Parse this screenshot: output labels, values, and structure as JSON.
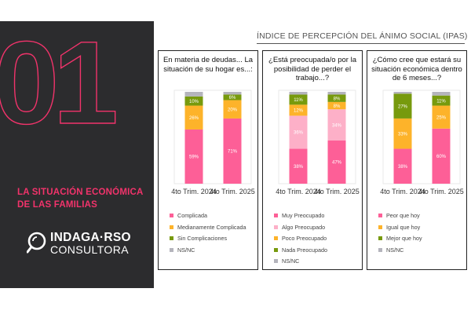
{
  "section": {
    "number": "01",
    "title": "LA SITUACIÓN ECONÓMICA DE LAS FAMILIAS"
  },
  "logo": {
    "name": "INDAGA·RSO",
    "subtitle": "CONSULTORA"
  },
  "header": {
    "title": "ÍNDICE DE PERCEPCIÓN DEL ÁNIMO SOCIAL (IPAS)"
  },
  "colors": {
    "accent": "#f2336b",
    "panel_bg": "#2c2c2e"
  },
  "chart_data": [
    {
      "type": "bar",
      "stacked": true,
      "title": "En materia de deudas... La situación de su hogar es...:",
      "categories": [
        "4to Trim. 2024",
        "4to Trim. 2025"
      ],
      "ylim": [
        0,
        100
      ],
      "series": [
        {
          "name": "Complicada",
          "color": "#fd5f97",
          "values": [
            59,
            71
          ]
        },
        {
          "name": "Medianamente Complicada",
          "color": "#fdb32a",
          "values": [
            26,
            20
          ]
        },
        {
          "name": "Sin Complicaciones",
          "color": "#779a0d",
          "values": [
            10,
            6
          ]
        },
        {
          "name": "NS/NC",
          "color": "#b4b4bc",
          "values": [
            5,
            3
          ]
        }
      ],
      "data_labels": [
        [
          "59%",
          "71%"
        ],
        [
          "26%",
          "20%"
        ],
        [
          "10%",
          "6%"
        ],
        [
          "",
          ""
        ]
      ]
    },
    {
      "type": "bar",
      "stacked": true,
      "title": "¿Está preocupada/o por la posibilidad de perder el trabajo...?",
      "categories": [
        "4to Trim. 2024",
        "4to Trim. 2025"
      ],
      "ylim": [
        0,
        100
      ],
      "series": [
        {
          "name": "Muy Preocupado",
          "color": "#fd5f97",
          "values": [
            38,
            47
          ]
        },
        {
          "name": "Algo Preocupado",
          "color": "#fdb0c8",
          "values": [
            36,
            34
          ]
        },
        {
          "name": "Poco Preocupado",
          "color": "#fdb32a",
          "values": [
            12,
            8
          ]
        },
        {
          "name": "Nada Preocupado",
          "color": "#779a0d",
          "values": [
            11,
            8
          ]
        },
        {
          "name": "NS/NC",
          "color": "#b4b4bc",
          "values": [
            3,
            3
          ]
        }
      ],
      "data_labels": [
        [
          "38%",
          "47%"
        ],
        [
          "36%",
          "34%"
        ],
        [
          "12%",
          "8%"
        ],
        [
          "11%",
          "8%"
        ],
        [
          "",
          ""
        ]
      ]
    },
    {
      "type": "bar",
      "stacked": true,
      "title": "¿Cómo cree que estará su situación económica dentro de 6 meses...?",
      "categories": [
        "4to Trim. 2024",
        "4to Trim. 2025"
      ],
      "ylim": [
        0,
        100
      ],
      "series": [
        {
          "name": "Peor que hoy",
          "color": "#fd5f97",
          "values": [
            38,
            60
          ]
        },
        {
          "name": "Igual que hoy",
          "color": "#fdb32a",
          "values": [
            33,
            25
          ]
        },
        {
          "name": "Mejor que hoy",
          "color": "#779a0d",
          "values": [
            27,
            11
          ]
        },
        {
          "name": "NS/NC",
          "color": "#b4b4bc",
          "values": [
            2,
            4
          ]
        }
      ],
      "data_labels": [
        [
          "38%",
          "60%"
        ],
        [
          "33%",
          "25%"
        ],
        [
          "27%",
          "11%"
        ],
        [
          "",
          ""
        ]
      ]
    }
  ]
}
